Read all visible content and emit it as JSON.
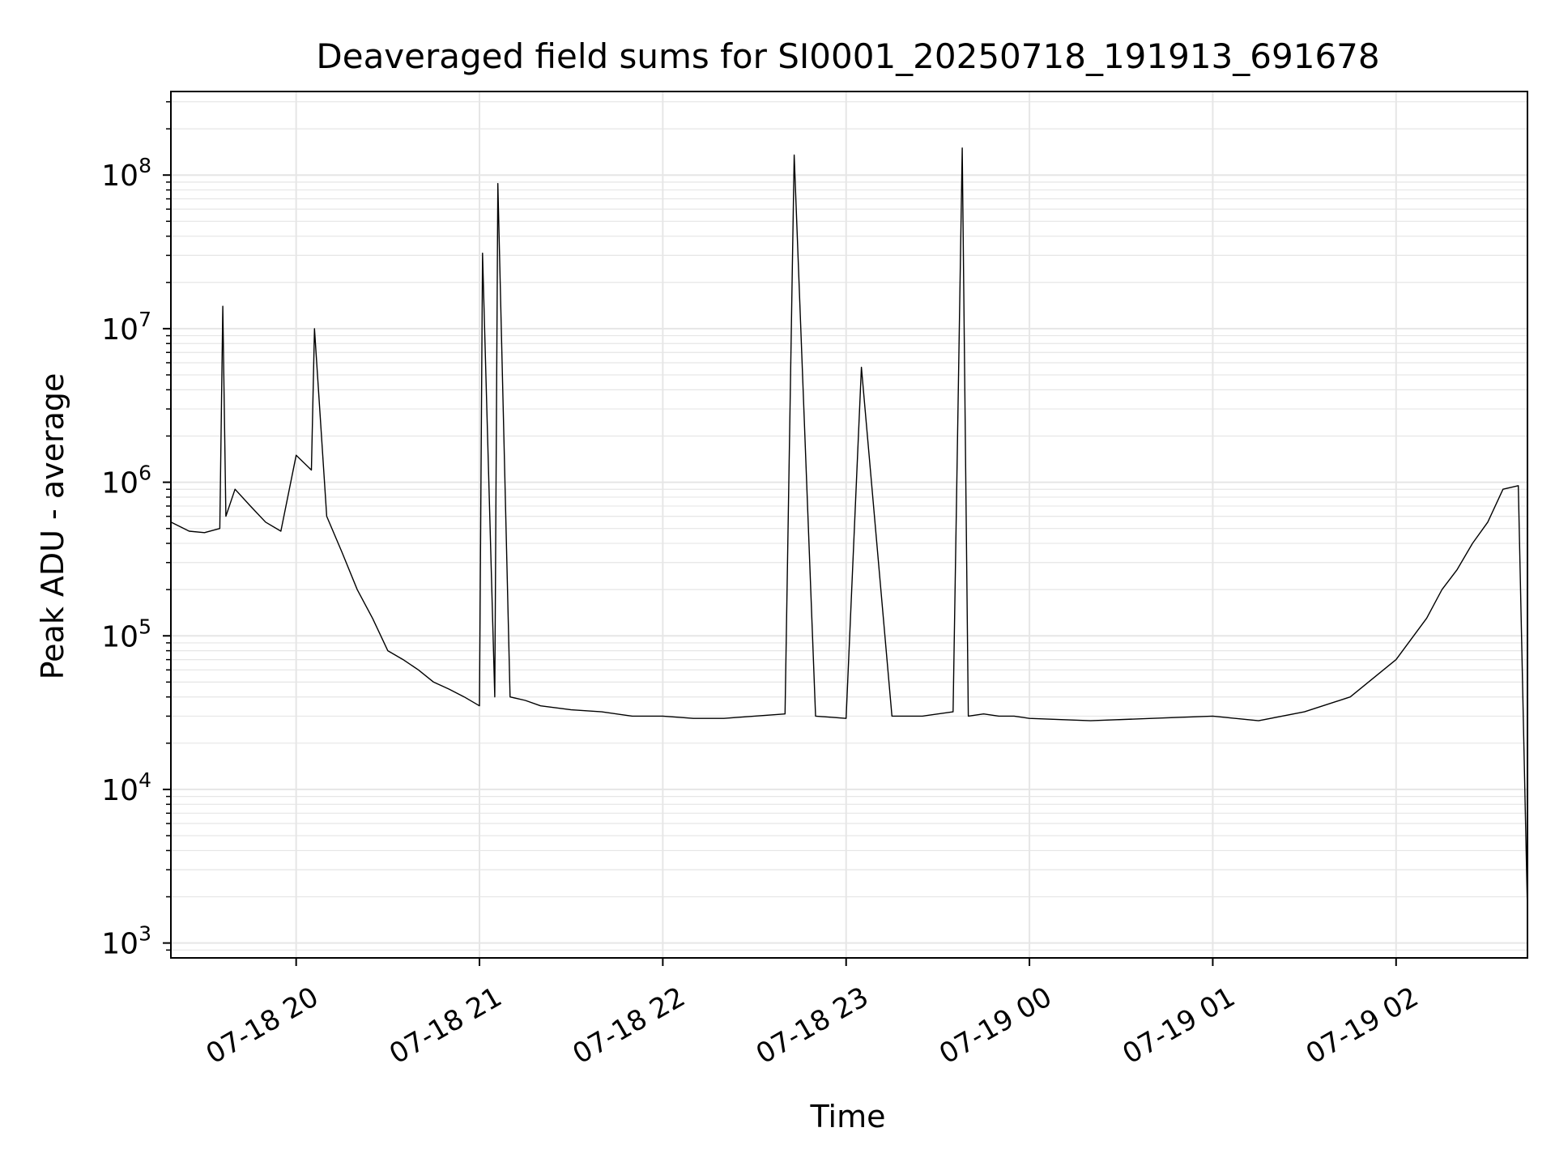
{
  "chart_data": {
    "type": "line",
    "title": "Deaveraged field sums for SI0001_20250718_191913_691678",
    "xlabel": "Time",
    "ylabel": "Peak ADU - average",
    "x_tick_labels": [
      "07-18 20",
      "07-18 21",
      "07-18 22",
      "07-18 23",
      "07-19 00",
      "07-19 01",
      "07-19 02"
    ],
    "x_ticks": [
      "2025-07-18 20:00",
      "2025-07-18 21:00",
      "2025-07-18 22:00",
      "2025-07-18 23:00",
      "2025-07-19 00:00",
      "2025-07-19 01:00",
      "2025-07-19 02:00"
    ],
    "y_tick_labels": [
      {
        "base": "10",
        "exp": "3"
      },
      {
        "base": "10",
        "exp": "4"
      },
      {
        "base": "10",
        "exp": "5"
      },
      {
        "base": "10",
        "exp": "6"
      },
      {
        "base": "10",
        "exp": "7"
      },
      {
        "base": "10",
        "exp": "8"
      }
    ],
    "y_ticks": [
      1000,
      10000,
      100000,
      1000000,
      10000000,
      100000000
    ],
    "yscale": "log",
    "xlim": [
      "2025-07-18 19:19",
      "2025-07-19 02:43"
    ],
    "ylim": [
      800,
      350000000
    ],
    "grid": true,
    "line_color": "#000000",
    "grid_color": "#e6e6e6",
    "series": [
      {
        "x": [
          "2025-07-18 19:19",
          "2025-07-18 19:25",
          "2025-07-18 19:30",
          "2025-07-18 19:35",
          "2025-07-18 19:36",
          "2025-07-18 19:37",
          "2025-07-18 19:40",
          "2025-07-18 19:45",
          "2025-07-18 19:50",
          "2025-07-18 19:55",
          "2025-07-18 20:00",
          "2025-07-18 20:05",
          "2025-07-18 20:06",
          "2025-07-18 20:10",
          "2025-07-18 20:15",
          "2025-07-18 20:20",
          "2025-07-18 20:25",
          "2025-07-18 20:30",
          "2025-07-18 20:35",
          "2025-07-18 20:40",
          "2025-07-18 20:45",
          "2025-07-18 20:50",
          "2025-07-18 20:55",
          "2025-07-18 21:00",
          "2025-07-18 21:01",
          "2025-07-18 21:05",
          "2025-07-18 21:06",
          "2025-07-18 21:10",
          "2025-07-18 21:15",
          "2025-07-18 21:20",
          "2025-07-18 21:30",
          "2025-07-18 21:40",
          "2025-07-18 21:50",
          "2025-07-18 22:00",
          "2025-07-18 22:10",
          "2025-07-18 22:20",
          "2025-07-18 22:30",
          "2025-07-18 22:40",
          "2025-07-18 22:43",
          "2025-07-18 22:50",
          "2025-07-18 23:00",
          "2025-07-18 23:05",
          "2025-07-18 23:15",
          "2025-07-18 23:25",
          "2025-07-18 23:35",
          "2025-07-18 23:38",
          "2025-07-18 23:40",
          "2025-07-18 23:45",
          "2025-07-18 23:50",
          "2025-07-18 23:55",
          "2025-07-19 00:00",
          "2025-07-19 00:20",
          "2025-07-19 00:40",
          "2025-07-19 01:00",
          "2025-07-19 01:15",
          "2025-07-19 01:30",
          "2025-07-19 01:45",
          "2025-07-19 02:00",
          "2025-07-19 02:10",
          "2025-07-19 02:15",
          "2025-07-19 02:20",
          "2025-07-19 02:25",
          "2025-07-19 02:30",
          "2025-07-19 02:35",
          "2025-07-19 02:40",
          "2025-07-19 02:43"
        ],
        "y": [
          550000,
          480000,
          470000,
          500000,
          14000000,
          600000,
          900000,
          700000,
          550000,
          480000,
          1500000,
          1200000,
          10000000,
          600000,
          350000,
          200000,
          130000,
          80000,
          70000,
          60000,
          50000,
          45000,
          40000,
          35000,
          31000000,
          40000,
          88000000,
          40000,
          38000,
          35000,
          33000,
          32000,
          30000,
          30000,
          29000,
          29000,
          30000,
          31000,
          135000000,
          30000,
          29000,
          5600000,
          30000,
          30000,
          32000,
          150000000,
          30000,
          31000,
          30000,
          30000,
          29000,
          28000,
          29000,
          30000,
          28000,
          32000,
          40000,
          70000,
          130000,
          200000,
          270000,
          400000,
          550000,
          900000,
          950000,
          1600
        ]
      }
    ]
  }
}
